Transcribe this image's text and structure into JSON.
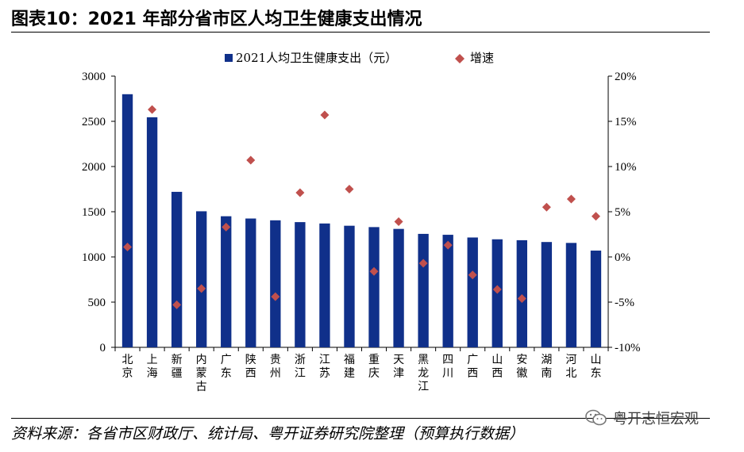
{
  "header": {
    "title": "图表10：2021 年部分省市区人均卫生健康支出情况"
  },
  "footer": {
    "source": "资料来源：各省市区财政厅、统计局、粤开证券研究院整理（预算执行数据）",
    "watermark": "粤开志恒宏观"
  },
  "chart_data": {
    "type": "bar",
    "categories": [
      "北京",
      "上海",
      "新疆",
      "内蒙古",
      "广东",
      "陕西",
      "贵州",
      "浙江",
      "江苏",
      "福建",
      "重庆",
      "天津",
      "黑龙江",
      "四川",
      "广西",
      "山西",
      "安徽",
      "湖南",
      "河北",
      "山东"
    ],
    "series": [
      {
        "name": "2021人均卫生健康支出（元）",
        "type": "bar",
        "axis": "left",
        "color": "#10308a",
        "values": [
          2800,
          2545,
          1720,
          1505,
          1450,
          1425,
          1405,
          1385,
          1370,
          1345,
          1330,
          1310,
          1255,
          1245,
          1215,
          1195,
          1185,
          1165,
          1155,
          1070
        ]
      },
      {
        "name": "增速",
        "type": "scatter",
        "axis": "right",
        "unit": "%",
        "color": "#c0504d",
        "marker": "diamond",
        "values": [
          1.1,
          16.3,
          -5.3,
          -3.5,
          3.3,
          10.7,
          -4.4,
          7.1,
          15.7,
          7.5,
          -1.6,
          3.9,
          -0.7,
          1.3,
          -2.0,
          -3.6,
          -4.6,
          5.5,
          6.4,
          4.5
        ]
      }
    ],
    "y_left": {
      "min": 0,
      "max": 3000,
      "step": 500,
      "ticks": [
        "0",
        "500",
        "1000",
        "1500",
        "2000",
        "2500",
        "3000"
      ]
    },
    "y_right": {
      "min": -10,
      "max": 20,
      "step": 5,
      "ticks": [
        "-10%",
        "-5%",
        "0%",
        "5%",
        "10%",
        "15%",
        "20%"
      ]
    },
    "legend": "top-center",
    "grid": false
  }
}
